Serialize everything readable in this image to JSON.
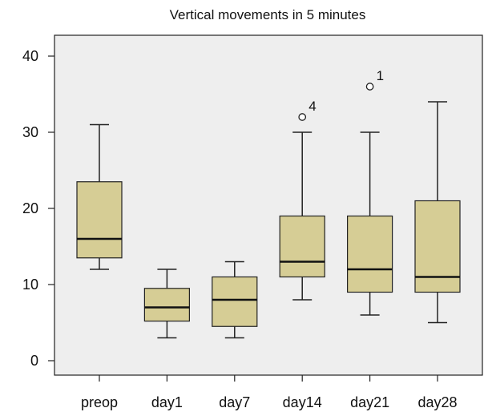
{
  "chart_data": {
    "type": "box",
    "title": "Vertical movements in 5 minutes",
    "xlabel": "",
    "ylabel": "",
    "ylim": [
      -2,
      43
    ],
    "yticks": [
      0,
      10,
      20,
      30,
      40
    ],
    "box_color": "#d6cd95",
    "background_color": "#eeeeee",
    "categories": [
      "preop",
      "day1",
      "day7",
      "day14",
      "day21",
      "day28"
    ],
    "boxes": [
      {
        "category": "preop",
        "min": 12,
        "q1": 13.5,
        "median": 16,
        "q3": 23.5,
        "max": 31,
        "outliers": []
      },
      {
        "category": "day1",
        "min": 3,
        "q1": 5.2,
        "median": 7,
        "q3": 9.5,
        "max": 12,
        "outliers": []
      },
      {
        "category": "day7",
        "min": 3,
        "q1": 4.5,
        "median": 8,
        "q3": 11,
        "max": 13,
        "outliers": []
      },
      {
        "category": "day14",
        "min": 8,
        "q1": 11,
        "median": 13,
        "q3": 19,
        "max": 30,
        "outliers": [
          {
            "value": 32,
            "label": "4"
          }
        ]
      },
      {
        "category": "day21",
        "min": 6,
        "q1": 9,
        "median": 12,
        "q3": 19,
        "max": 30,
        "outliers": [
          {
            "value": 36,
            "label": "1"
          }
        ]
      },
      {
        "category": "day28",
        "min": 5,
        "q1": 9,
        "median": 11,
        "q3": 21,
        "max": 34,
        "outliers": []
      }
    ]
  }
}
